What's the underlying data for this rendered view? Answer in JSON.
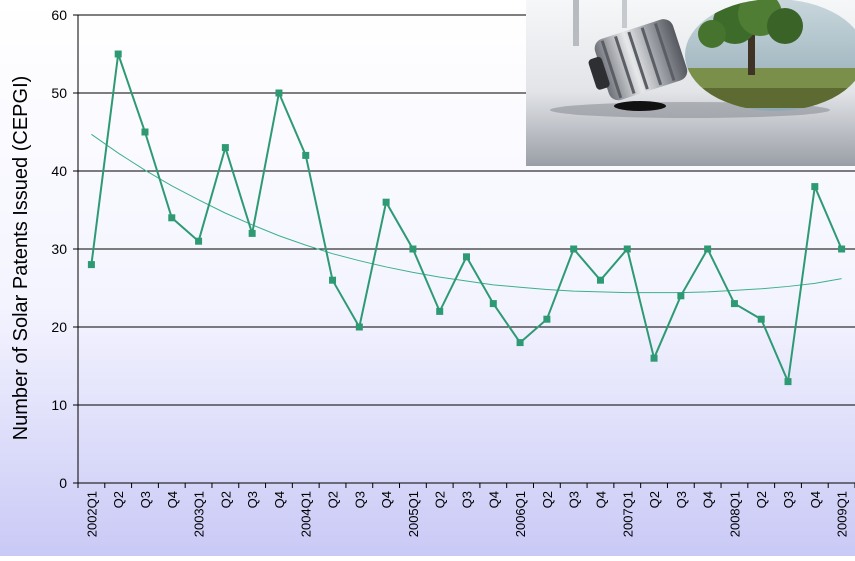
{
  "chart_data": {
    "type": "line",
    "title": "",
    "xlabel": "",
    "ylabel": "Number of Solar Patents Issued (CEPGI)",
    "ylim": [
      0,
      60
    ],
    "yticks": [
      0,
      10,
      20,
      30,
      40,
      50,
      60
    ],
    "grid": true,
    "legend": "none",
    "categories": [
      "2002Q1",
      "Q2",
      "Q3",
      "Q4",
      "2003Q1",
      "Q2",
      "Q3",
      "Q4",
      "2004Q1",
      "Q2",
      "Q3",
      "Q4",
      "2005Q1",
      "Q2",
      "Q3",
      "Q4",
      "2006Q1",
      "Q2",
      "Q3",
      "Q4",
      "2007Q1",
      "Q2",
      "Q3",
      "Q4",
      "2008Q1",
      "Q2",
      "Q3",
      "Q4",
      "2009Q1"
    ],
    "series": [
      {
        "values": [
          28,
          55,
          45,
          34,
          31,
          43,
          32,
          50,
          42,
          26,
          20,
          36,
          30,
          22,
          29,
          23,
          18,
          21,
          30,
          26,
          30,
          16,
          24,
          30,
          23,
          21,
          13,
          38,
          30
        ],
        "color": "#2e9a74"
      }
    ],
    "trendline": {
      "type": "polynomial",
      "values": [
        44.7,
        42.3,
        40.1,
        38.1,
        36.3,
        34.6,
        33.1,
        31.7,
        30.5,
        29.4,
        28.5,
        27.7,
        27.0,
        26.4,
        25.9,
        25.4,
        25.1,
        24.8,
        24.6,
        24.5,
        24.4,
        24.4,
        24.4,
        24.5,
        24.7,
        24.9,
        25.2,
        25.6,
        26.2
      ],
      "color": "#3cb08a"
    }
  },
  "photo": {
    "description_icon": "lightbulb-with-tree-photo"
  },
  "colors": {
    "axis": "#000000",
    "grid": "#000000",
    "marker": "#2e9a74"
  }
}
